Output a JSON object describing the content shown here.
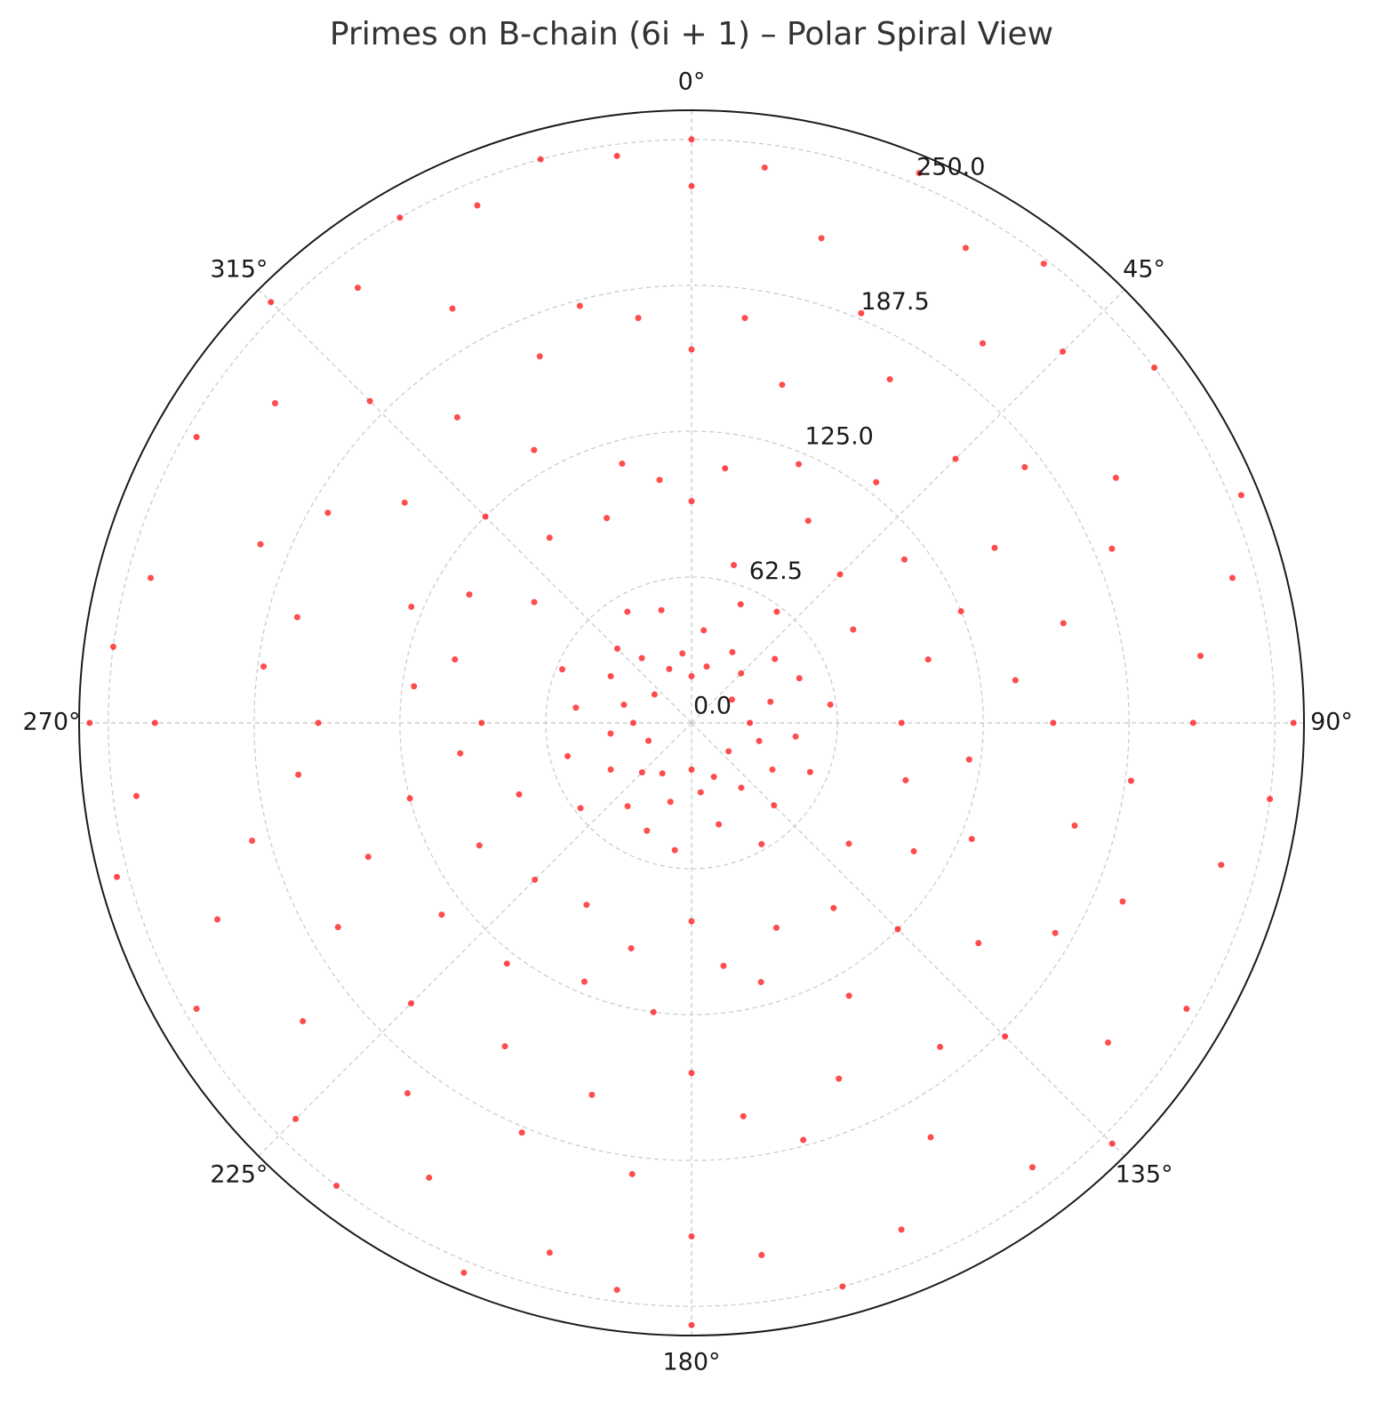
{
  "chart_data": {
    "type": "scatter",
    "projection": "polar",
    "theta_zero": "N",
    "theta_direction": "clockwise",
    "title": "Primes on B-chain (6i + 1) – Polar Spiral View",
    "color": "#ff0000",
    "rlim": [
      0,
      262.5
    ],
    "rticks": [
      {
        "value": 0,
        "label": "0.0"
      },
      62.5,
      {
        "value": 125,
        "label": "125.0"
      },
      187.5,
      {
        "value": 250,
        "label": "250.0"
      }
    ],
    "thetaticks": [
      {
        "value": 0,
        "label": "0°"
      },
      {
        "value": 45,
        "label": "45°"
      },
      {
        "value": 90,
        "label": "90°"
      },
      {
        "value": 135,
        "label": "135°"
      },
      {
        "value": 180,
        "label": "180°"
      },
      {
        "value": 225,
        "label": "225°"
      },
      {
        "value": 270,
        "label": "270°"
      },
      {
        "value": 315,
        "label": "315°"
      }
    ],
    "grid": true,
    "theta": [
      0,
      0,
      0,
      0,
      0,
      7.5,
      7.5,
      7.5,
      7.5,
      15,
      15,
      15,
      15,
      22.5,
      22.5,
      22.5,
      22.5,
      30,
      30,
      30,
      30,
      37.5,
      37.5,
      37.5,
      37.5,
      45,
      45,
      45,
      45,
      52.5,
      52.5,
      52.5,
      52.5,
      60,
      60,
      60,
      60,
      67.5,
      67.5,
      67.5,
      67.5,
      75,
      75,
      75,
      75,
      82.5,
      82.5,
      82.5,
      90,
      90,
      90,
      90,
      90,
      97.5,
      97.5,
      97.5,
      97.5,
      105,
      105,
      105,
      105,
      112.5,
      112.5,
      112.5,
      120,
      120,
      120,
      120,
      127.5,
      127.5,
      127.5,
      127.5,
      135,
      135,
      135,
      135,
      142.5,
      142.5,
      142.5,
      142.5,
      150,
      150,
      150,
      157.5,
      157.5,
      157.5,
      157.5,
      165,
      165,
      165,
      165,
      172.5,
      172.5,
      172.5,
      172.5,
      180,
      180,
      180,
      180,
      180,
      187.5,
      187.5,
      187.5,
      187.5,
      195,
      195,
      195,
      195,
      202.5,
      202.5,
      202.5,
      202.5,
      210,
      210,
      210,
      210,
      217.5,
      217.5,
      217.5,
      217.5,
      225,
      225,
      225,
      225,
      232.5,
      232.5,
      232.5,
      240,
      240,
      240,
      240,
      247.5,
      247.5,
      247.5,
      247.5,
      255,
      255,
      255,
      255,
      262.5,
      262.5,
      262.5,
      262.5,
      270,
      270,
      270,
      270,
      270,
      277.5,
      277.5,
      277.5,
      277.5,
      285,
      285,
      285,
      285,
      292.5,
      292.5,
      292.5,
      300,
      300,
      300,
      300,
      307.5,
      307.5,
      307.5,
      307.5,
      315,
      315,
      315,
      315,
      322.5,
      322.5,
      322.5,
      322.5,
      330,
      330,
      330,
      330,
      337.5,
      337.5,
      337.5,
      337.5,
      345,
      345,
      345,
      345,
      352.5,
      352.5,
      352.5,
      352.5
    ],
    "r": [
      20,
      95,
      160,
      230,
      250,
      40,
      110,
      175,
      240,
      25,
      70,
      150,
      215,
      55,
      120,
      190,
      255,
      35,
      100,
      170,
      235,
      60,
      130,
      205,
      248,
      30,
      90,
      160,
      225,
      45,
      115,
      180,
      250,
      20,
      80,
      150,
      210,
      50,
      125,
      195,
      255,
      35,
      105,
      165,
      240,
      60,
      140,
      220,
      25,
      90,
      155,
      215,
      258,
      45,
      120,
      190,
      250,
      30,
      95,
      170,
      235,
      55,
      130,
      200,
      40,
      110,
      180,
      245,
      20,
      85,
      155,
      225,
      50,
      125,
      190,
      255,
      35,
      100,
      175,
      240,
      60,
      135,
      205,
      25,
      95,
      165,
      235,
      45,
      115,
      185,
      250,
      30,
      105,
      170,
      230,
      20,
      85,
      150,
      220,
      258,
      55,
      125,
      195,
      245,
      35,
      100,
      165,
      235,
      50,
      120,
      190,
      255,
      25,
      90,
      160,
      225,
      45,
      130,
      200,
      250,
      30,
      95,
      170,
      240,
      60,
      135,
      210,
      40,
      105,
      175,
      245,
      20,
      80,
      150,
      220,
      55,
      125,
      195,
      255,
      35,
      100,
      170,
      240,
      25,
      90,
      160,
      230,
      258,
      50,
      120,
      185,
      250,
      30,
      105,
      175,
      240,
      60,
      130,
      200,
      40,
      110,
      180,
      245,
      20,
      85,
      155,
      225,
      45,
      125,
      195,
      255,
      35,
      100,
      165,
      235,
      55,
      135,
      205,
      250,
      25,
      95,
      170,
      240,
      50,
      115,
      185,
      250,
      30,
      105,
      175,
      245
    ]
  }
}
